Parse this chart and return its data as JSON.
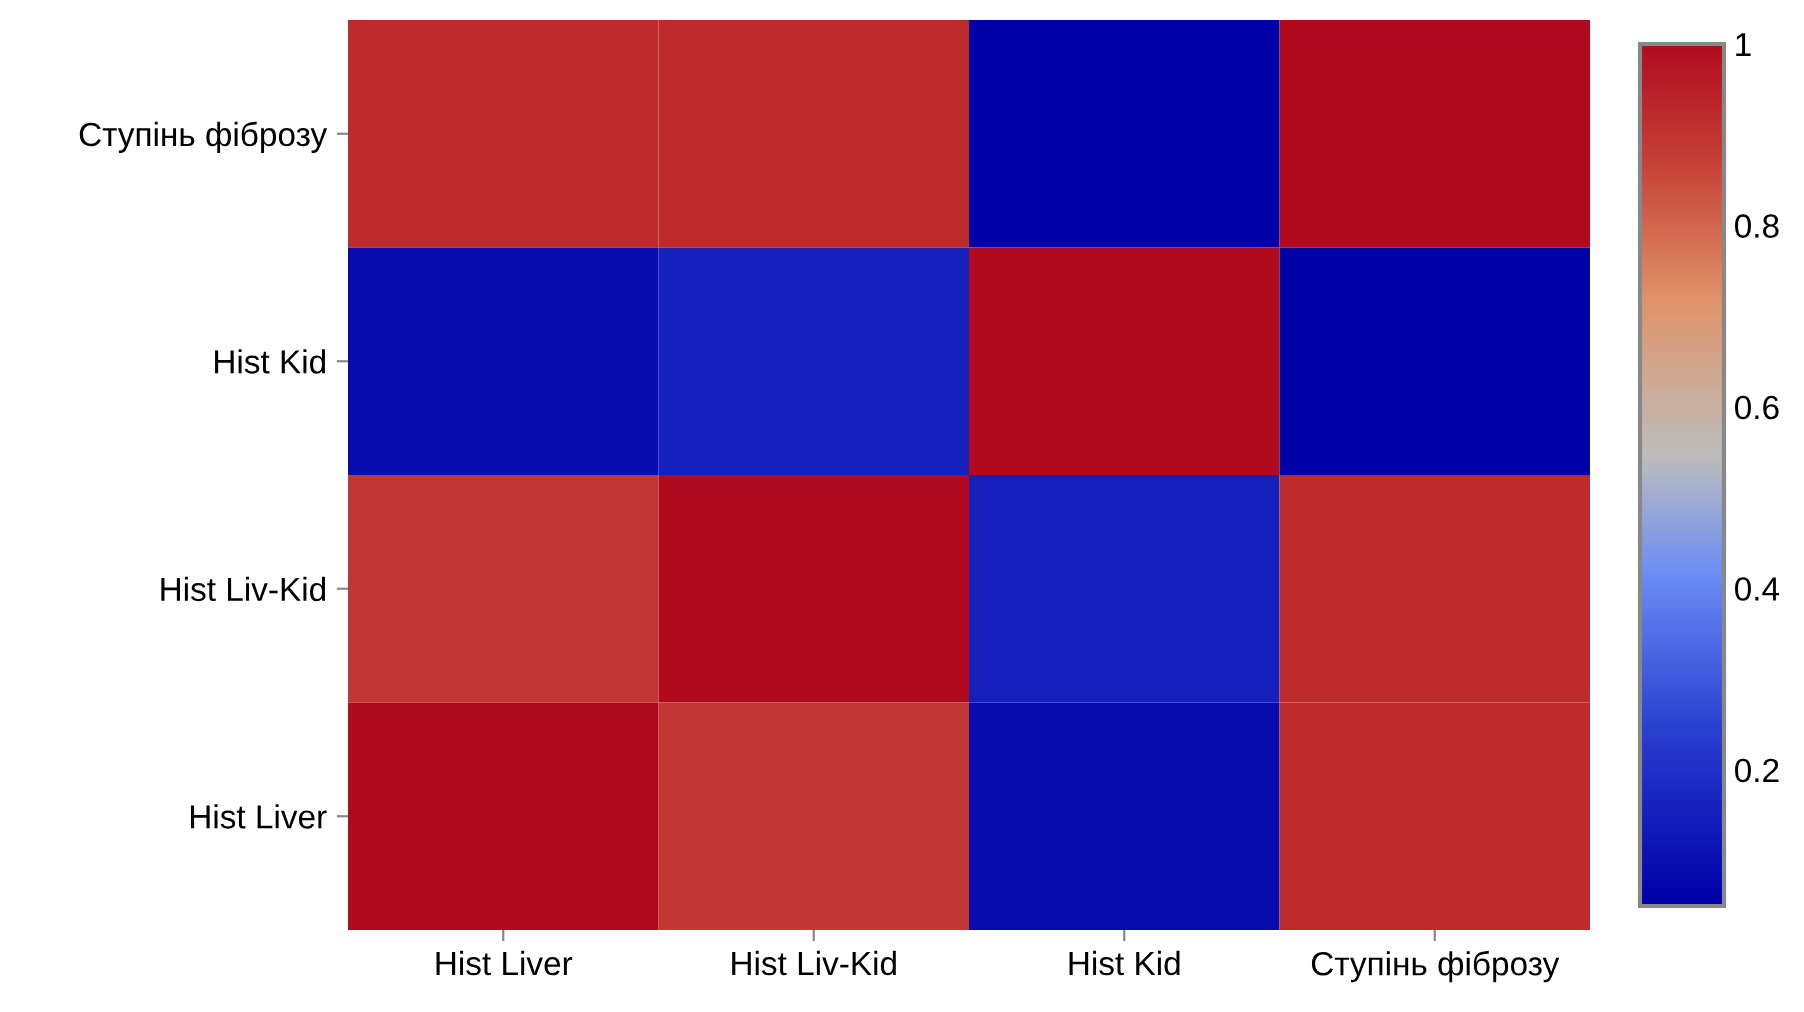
{
  "chart_data": {
    "type": "heatmap",
    "categories": [
      "Hist Liver",
      "Hist Liv-Kid",
      "Hist Kid",
      "Ступінь фіброзу"
    ],
    "y_categories": [
      "Ступінь фіброзу",
      "Hist Kid",
      "Hist Liv-Kid",
      "Hist Liver"
    ],
    "cells": [
      [
        0.92,
        0.92,
        0.05,
        1
      ],
      [
        0.09,
        0.15,
        1,
        0.05
      ],
      [
        0.89,
        1,
        0.15,
        0.92
      ],
      [
        1,
        0.89,
        0.09,
        0.92
      ]
    ],
    "clim": [
      0.05,
      1
    ],
    "cticks": [
      0.2,
      0.4,
      0.6,
      0.8,
      1
    ]
  }
}
